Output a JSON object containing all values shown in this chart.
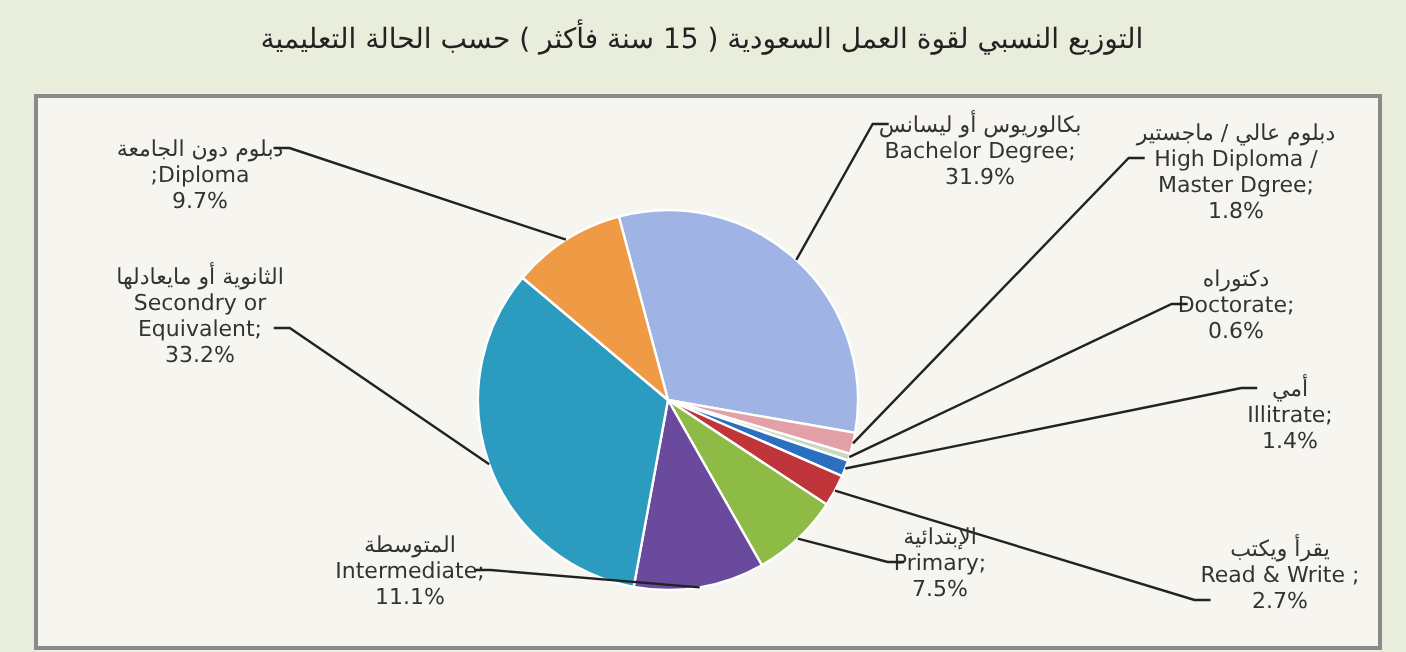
{
  "chart_data": {
    "type": "pie",
    "title": "التوزيع النسبي لقوة العمل السعودية ( 15 سنة فأكثر ) حسب الحالة التعليمية",
    "categories": [
      "بكالوريوس أو ليسانس\nBachelor Degree",
      "دبلوم عالي / ماجستير\nHigh Diploma /\nMaster Dgree",
      "دكتوراه\nDoctorate",
      "أمي\nIllitrate",
      "يقرأ ويكتب\nRead & Write",
      "الإبتدائية\nPrimary",
      "المتوسطة\nIntermediate",
      "الثانوية أو مايعادلها\nSecondry or\nEquivalent",
      "دبلوم دون الجامعة\n;Diploma"
    ],
    "values": [
      31.9,
      1.8,
      0.6,
      1.4,
      2.7,
      7.5,
      11.1,
      33.2,
      9.7
    ],
    "value_labels": [
      ";\n31.9%",
      ";\n1.8%",
      ";\n0.6%",
      ";\n1.4%",
      " ;\n2.7%",
      ";\n7.5%",
      ";\n11.1%",
      ";\n33.2%",
      "9.7%"
    ],
    "colors": [
      "#9fb4e4",
      "#e3a0a6",
      "#c9d8c0",
      "#2a6fc0",
      "#c0353a",
      "#8dbb45",
      "#6a4a9c",
      "#2b9cc0",
      "#ef9a45"
    ]
  }
}
